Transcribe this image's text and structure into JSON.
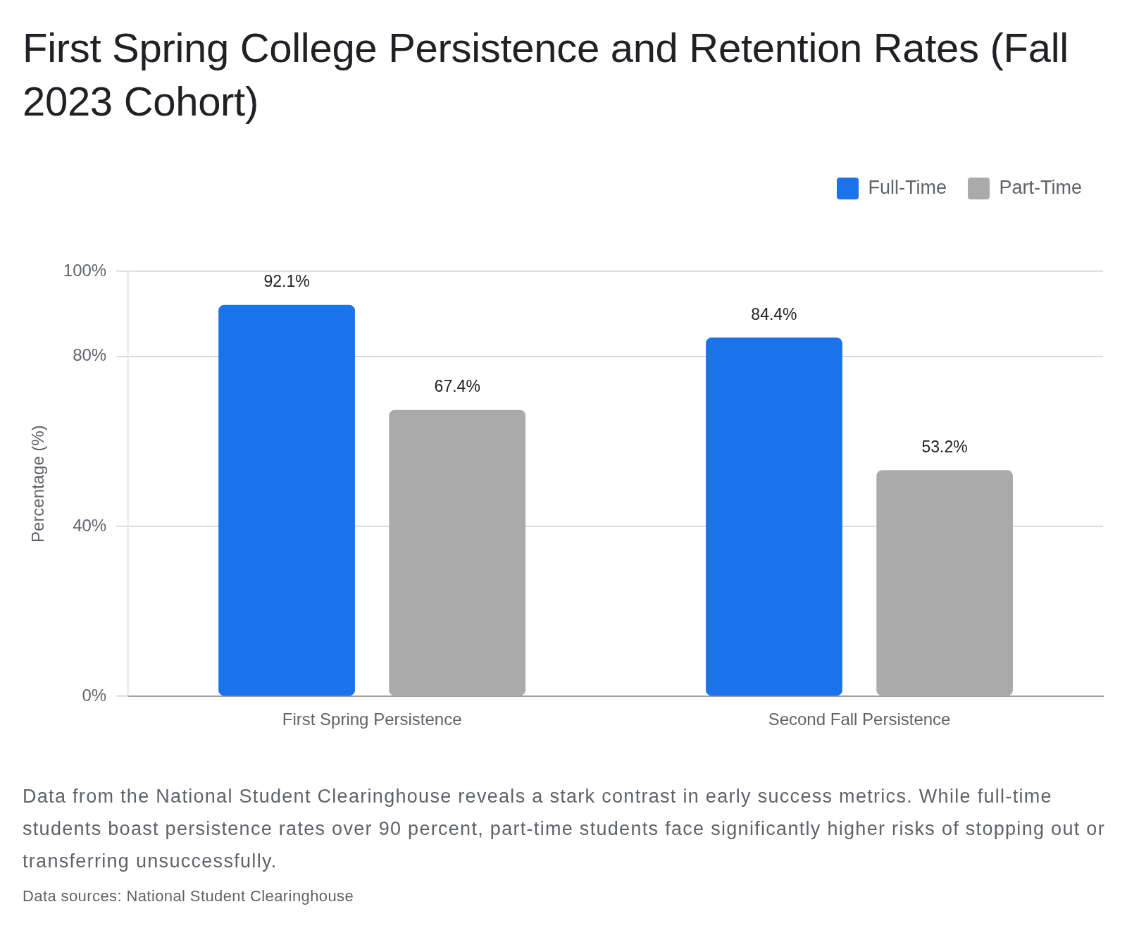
{
  "chart_data": {
    "type": "bar",
    "title": "First Spring College Persistence and Retention Rates (Fall 2023 Cohort)",
    "ylabel": "Percentage (%)",
    "categories": [
      "First Spring Persistence",
      "Second Fall Persistence"
    ],
    "series": [
      {
        "name": "Full-Time",
        "color": "#1a73e8",
        "values": [
          92.1,
          84.4
        ],
        "value_labels": [
          "92.1%",
          "84.4%"
        ]
      },
      {
        "name": "Part-Time",
        "color": "#aaaaaa",
        "values": [
          67.4,
          53.2
        ],
        "value_labels": [
          "67.4%",
          "53.2%"
        ]
      }
    ],
    "ylim": [
      0,
      100
    ],
    "yticks": [
      {
        "value": 0,
        "label": "0%"
      },
      {
        "value": 40,
        "label": "40%"
      },
      {
        "value": 80,
        "label": "80%"
      },
      {
        "value": 100,
        "label": "100%"
      }
    ],
    "grid": "y",
    "legend": "top right",
    "annotations": [
      "Data from the National Student Clearinghouse reveals a stark contrast in early success metrics. While full-time students boast persistence rates over 90 percent, part-time students face significantly higher risks of stopping out or transferring unsuccessfully.",
      "Data sources: National Student Clearinghouse"
    ]
  }
}
